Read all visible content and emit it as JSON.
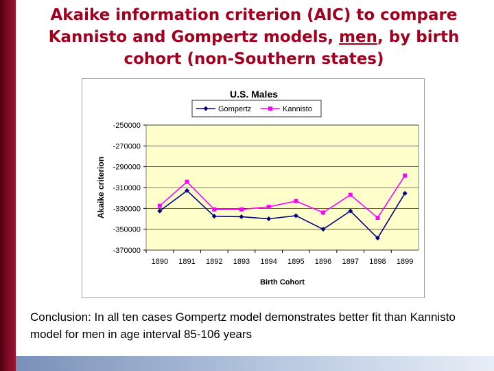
{
  "slide": {
    "title_part1": "Akaike information criterion (AIC) to compare Kannisto and Gompertz models, ",
    "title_underlined": "men",
    "title_part2": ", by birth cohort (non-Southern states)",
    "conclusion": "Conclusion: In all ten cases Gompertz model demonstrates better fit than Kannisto model for men in age interval 85-106 years"
  },
  "chart_data": {
    "type": "line",
    "title": "U.S. Males",
    "xlabel": "Birth Cohort",
    "ylabel": "Akaike criterion",
    "categories": [
      "1890",
      "1891",
      "1892",
      "1893",
      "1894",
      "1895",
      "1896",
      "1897",
      "1898",
      "1899"
    ],
    "ylim": [
      -370000,
      -250000
    ],
    "yticks": [
      -250000,
      -270000,
      -290000,
      -310000,
      -330000,
      -350000,
      -370000
    ],
    "ytick_labels": [
      "-250000",
      "-270000",
      "-290000",
      "-310000",
      "-330000",
      "-350000",
      "-370000"
    ],
    "legend_position": "top",
    "grid": "horizontal",
    "plot_background": "#ffffcc",
    "series": [
      {
        "name": "Gompertz",
        "color": "#000080",
        "marker": "diamond",
        "values": [
          -332500,
          -313000,
          -337500,
          -338000,
          -340000,
          -337000,
          -350000,
          -332500,
          -358500,
          -315500
        ]
      },
      {
        "name": "Kannisto",
        "color": "#ff00ff",
        "marker": "square",
        "values": [
          -327500,
          -304500,
          -331000,
          -331000,
          -328500,
          -323000,
          -334000,
          -317000,
          -339000,
          -298500
        ]
      }
    ]
  }
}
